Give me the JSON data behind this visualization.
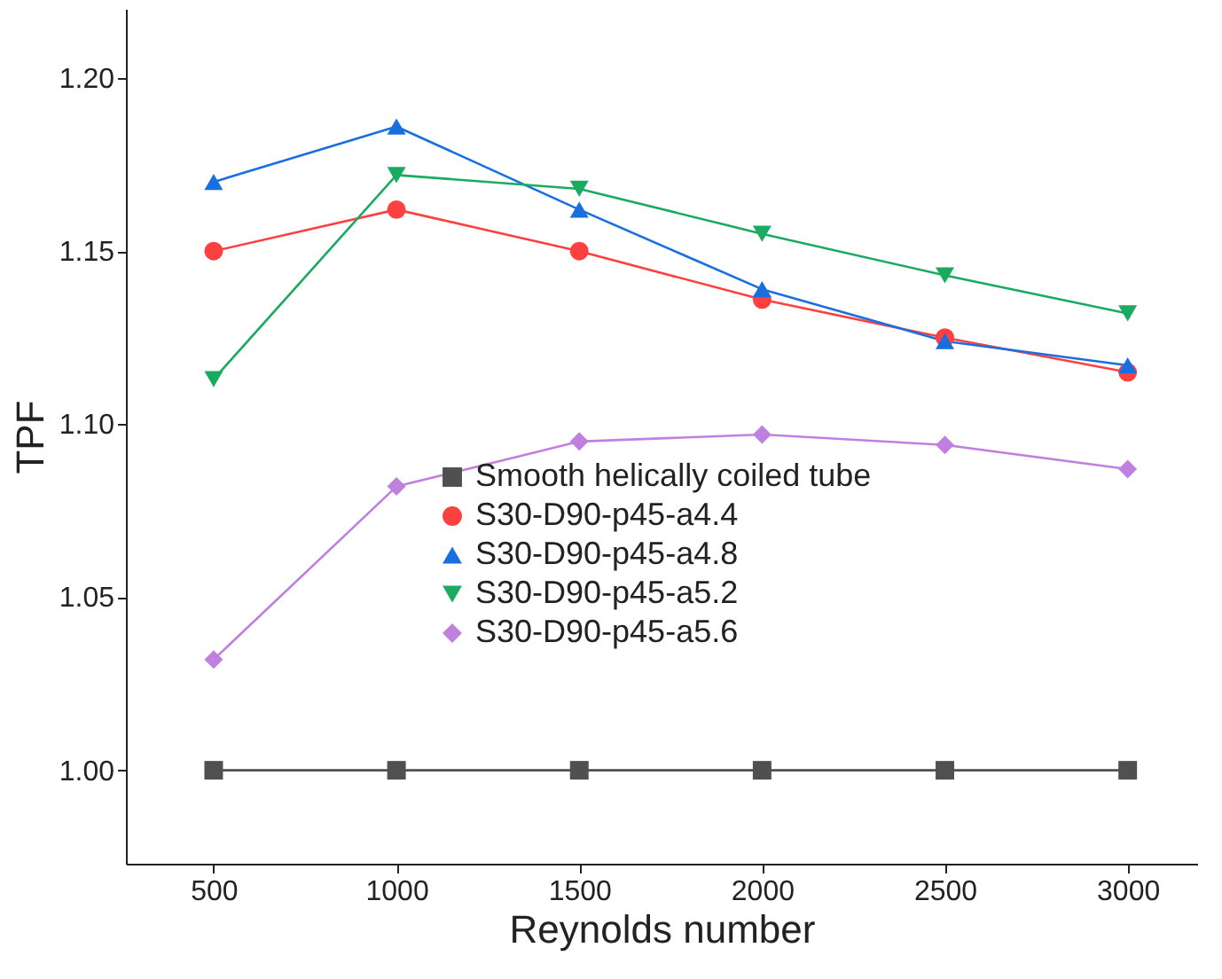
{
  "chart_data": {
    "type": "line",
    "xlabel": "Reynolds number",
    "ylabel": "TPF",
    "x": [
      500,
      1000,
      1500,
      2000,
      2500,
      3000
    ],
    "xlim": [
      260,
      3190
    ],
    "xticks": [
      500,
      1000,
      1500,
      2000,
      2500,
      3000
    ],
    "ylim": [
      0.973,
      1.22
    ],
    "yticks": [
      {
        "value": 1.0,
        "label": "1.00"
      },
      {
        "value": 1.05,
        "label": "1.05"
      },
      {
        "value": 1.1,
        "label": "1.10"
      },
      {
        "value": 1.15,
        "label": "1.15"
      },
      {
        "value": 1.2,
        "label": "1.20"
      }
    ],
    "grid": false,
    "legend": "bottom right",
    "line_style": "solid",
    "series": [
      {
        "name": "Smooth helically coiled tube",
        "color": "#505050",
        "marker": "square",
        "values": [
          1.0,
          1.0,
          1.0,
          1.0,
          1.0,
          1.0
        ]
      },
      {
        "name": "S30-D90-p45-a4.4",
        "color": "#ff4040",
        "marker": "circle",
        "values": [
          1.15,
          1.162,
          1.15,
          1.136,
          1.125,
          1.115
        ]
      },
      {
        "name": "S30-D90-p45-a4.8",
        "color": "#1a6fe0",
        "marker": "triangle",
        "values": [
          1.17,
          1.186,
          1.162,
          1.139,
          1.124,
          1.117
        ]
      },
      {
        "name": "S30-D90-p45-a5.2",
        "color": "#1aaa60",
        "marker": "triangle-down",
        "values": [
          1.113,
          1.172,
          1.168,
          1.155,
          1.143,
          1.132
        ]
      },
      {
        "name": "S30-D90-p45-a5.6",
        "color": "#c080e0",
        "marker": "diamond",
        "values": [
          1.032,
          1.082,
          1.095,
          1.097,
          1.094,
          1.087
        ]
      }
    ]
  }
}
